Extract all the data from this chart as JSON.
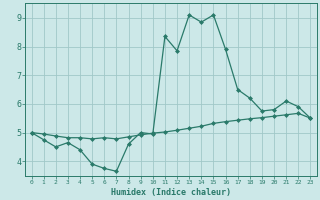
{
  "xlabel": "Humidex (Indice chaleur)",
  "bg_color": "#cce8e8",
  "grid_color": "#a0c8c8",
  "line_color": "#2a7a6a",
  "xlim": [
    -0.5,
    23.5
  ],
  "ylim": [
    3.5,
    9.5
  ],
  "yticks": [
    4,
    5,
    6,
    7,
    8,
    9
  ],
  "xticks": [
    0,
    1,
    2,
    3,
    4,
    5,
    6,
    7,
    8,
    9,
    10,
    11,
    12,
    13,
    14,
    15,
    16,
    17,
    18,
    19,
    20,
    21,
    22,
    23
  ],
  "series1_x": [
    0,
    1,
    2,
    3,
    4,
    5,
    6,
    7,
    8,
    9,
    10,
    11,
    12,
    13,
    14,
    15,
    16,
    17,
    18,
    19,
    20,
    21,
    22,
    23
  ],
  "series1_y": [
    5.0,
    4.75,
    4.5,
    4.65,
    4.4,
    3.9,
    3.75,
    3.65,
    4.6,
    5.0,
    4.95,
    8.35,
    7.85,
    9.1,
    8.85,
    9.1,
    7.9,
    6.5,
    6.2,
    5.75,
    5.8,
    6.1,
    5.9,
    5.5
  ],
  "series2_x": [
    0,
    1,
    2,
    3,
    4,
    5,
    6,
    7,
    8,
    9,
    10,
    11,
    12,
    13,
    14,
    15,
    16,
    17,
    18,
    19,
    20,
    21,
    22,
    23
  ],
  "series2_y": [
    5.0,
    4.95,
    4.88,
    4.82,
    4.82,
    4.78,
    4.82,
    4.78,
    4.85,
    4.92,
    4.98,
    5.02,
    5.08,
    5.15,
    5.22,
    5.32,
    5.38,
    5.43,
    5.48,
    5.52,
    5.57,
    5.62,
    5.67,
    5.5
  ]
}
